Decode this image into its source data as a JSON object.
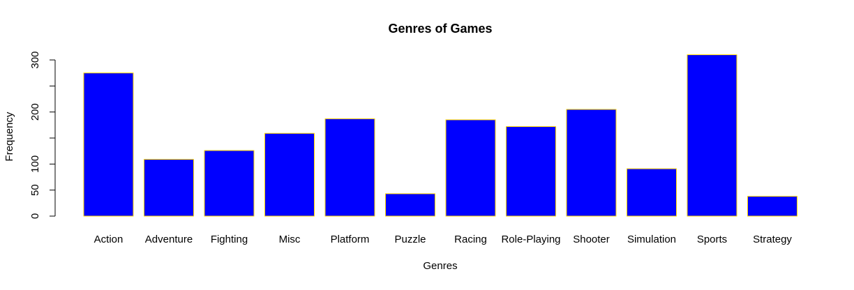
{
  "chart_data": {
    "type": "bar",
    "title": "Genres of Games",
    "xlabel": "Genres",
    "ylabel": "Frequency",
    "categories": [
      "Action",
      "Adventure",
      "Fighting",
      "Misc",
      "Platform",
      "Puzzle",
      "Racing",
      "Role-Playing",
      "Shooter",
      "Simulation",
      "Sports",
      "Strategy"
    ],
    "values": [
      275,
      109,
      126,
      159,
      187,
      43,
      185,
      172,
      205,
      91,
      310,
      38
    ],
    "yticks": [
      0,
      50,
      100,
      200,
      300
    ],
    "ylim": [
      0,
      310
    ],
    "grid": false,
    "colors": {
      "bar_fill": "#0000ff",
      "bar_border": "#ffd700",
      "axis": "#000000"
    }
  }
}
